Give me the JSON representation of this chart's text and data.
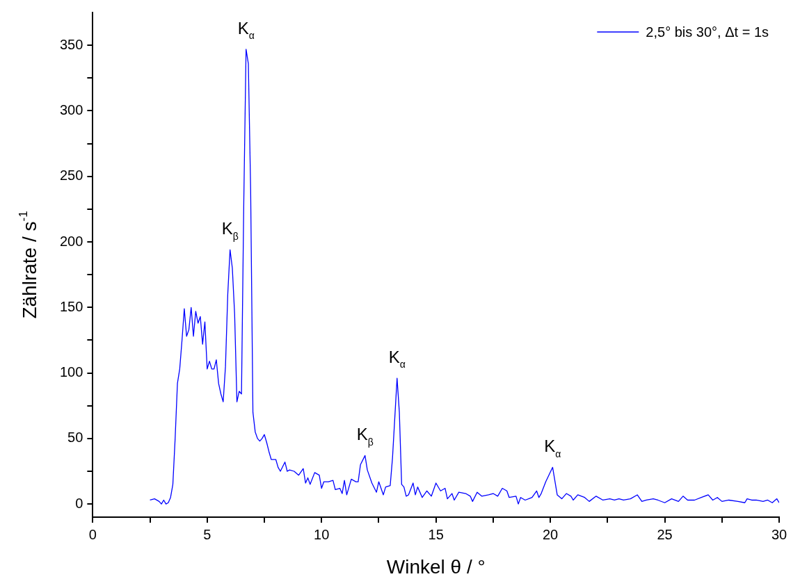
{
  "chart_data": {
    "type": "line",
    "xlabel": "Winkel θ / °",
    "ylabel": "Zählrate / s$^{-1}$",
    "xlim": [
      0,
      30
    ],
    "ylim": [
      -10,
      375
    ],
    "xticks": [
      0,
      {
        "value": 2.5,
        "label": null
      },
      5,
      {
        "value": 7.5,
        "label": null
      },
      10,
      {
        "value": 12.5,
        "label": null
      },
      15,
      {
        "value": 17.5,
        "label": null
      },
      20,
      {
        "value": 22.5,
        "label": null
      },
      25,
      {
        "value": 27.5,
        "label": null
      },
      30
    ],
    "yticks": [
      0,
      {
        "value": 25,
        "label": null
      },
      50,
      {
        "value": 75,
        "label": null
      },
      100,
      {
        "value": 125,
        "label": null
      },
      150,
      {
        "value": 175,
        "label": null
      },
      200,
      {
        "value": 225,
        "label": null
      },
      250,
      {
        "value": 275,
        "label": null
      },
      300,
      {
        "value": 325,
        "label": null
      },
      350
    ],
    "legend": "top right",
    "grid": false,
    "marker": "none",
    "line_style": "solid",
    "annotations": [
      {
        "text": "K$_{β}$",
        "x": 6.0,
        "y": 194
      },
      {
        "text": "K$_{α}$",
        "x": 6.7,
        "y": 347
      },
      {
        "text": "K$_{β}$",
        "x": 11.9,
        "y": 37
      },
      {
        "text": "K$_{α}$",
        "x": 13.3,
        "y": 96
      },
      {
        "text": "K$_{α}$",
        "x": 20.1,
        "y": 28
      }
    ],
    "series": [
      {
        "name": "2,5° bis 30°, Δt = 1s",
        "color": "#0000ff",
        "x": [
          2.5,
          2.7,
          2.9,
          3.0,
          3.1,
          3.2,
          3.3,
          3.4,
          3.5,
          3.6,
          3.7,
          3.8,
          3.9,
          4.0,
          4.1,
          4.2,
          4.3,
          4.4,
          4.5,
          4.6,
          4.7,
          4.8,
          4.9,
          5.0,
          5.1,
          5.2,
          5.3,
          5.4,
          5.5,
          5.6,
          5.7,
          5.8,
          5.9,
          6.0,
          6.1,
          6.2,
          6.3,
          6.4,
          6.5,
          6.6,
          6.7,
          6.8,
          6.9,
          7.0,
          7.1,
          7.2,
          7.3,
          7.4,
          7.5,
          7.6,
          7.7,
          7.8,
          8.0,
          8.1,
          8.2,
          8.4,
          8.5,
          8.6,
          8.8,
          9.0,
          9.2,
          9.3,
          9.4,
          9.5,
          9.7,
          9.9,
          10.0,
          10.1,
          10.3,
          10.5,
          10.6,
          10.8,
          10.9,
          11.0,
          11.1,
          11.3,
          11.5,
          11.6,
          11.7,
          11.9,
          12.0,
          12.2,
          12.4,
          12.5,
          12.7,
          12.8,
          13.0,
          13.1,
          13.3,
          13.4,
          13.5,
          13.6,
          13.7,
          13.8,
          14.0,
          14.1,
          14.2,
          14.4,
          14.6,
          14.8,
          15.0,
          15.2,
          15.4,
          15.5,
          15.7,
          15.8,
          16.0,
          16.3,
          16.5,
          16.6,
          16.8,
          17.0,
          17.3,
          17.5,
          17.7,
          17.9,
          18.1,
          18.2,
          18.5,
          18.6,
          18.7,
          18.9,
          19.2,
          19.4,
          19.5,
          19.6,
          19.8,
          20.1,
          20.3,
          20.5,
          20.7,
          20.9,
          21.0,
          21.2,
          21.5,
          21.7,
          22.0,
          22.3,
          22.6,
          22.8,
          23.0,
          23.2,
          23.5,
          23.8,
          24.0,
          24.2,
          24.5,
          24.7,
          25.0,
          25.3,
          25.6,
          25.8,
          26.0,
          26.3,
          26.6,
          26.9,
          27.1,
          27.3,
          27.5,
          27.8,
          28.2,
          28.5,
          28.6,
          28.8,
          29.0,
          29.3,
          29.5,
          29.7,
          29.9,
          30.0
        ],
        "values": [
          3,
          4,
          2,
          0,
          3,
          0,
          1,
          5,
          15,
          50,
          92,
          103,
          125,
          149,
          128,
          133,
          150,
          128,
          147,
          138,
          143,
          122,
          139,
          103,
          109,
          103,
          103,
          110,
          92,
          84,
          78,
          105,
          160,
          194,
          180,
          145,
          78,
          86,
          84,
          230,
          347,
          336,
          240,
          70,
          55,
          50,
          48,
          50,
          53,
          47,
          40,
          34,
          34,
          28,
          25,
          32,
          25,
          26,
          25,
          22,
          27,
          16,
          20,
          15,
          24,
          22,
          12,
          17,
          17,
          18,
          11,
          12,
          8,
          18,
          7,
          19,
          17,
          17,
          30,
          37,
          26,
          16,
          9,
          17,
          7,
          13,
          14,
          35,
          96,
          70,
          15,
          13,
          6,
          7,
          16,
          7,
          13,
          5,
          10,
          6,
          16,
          10,
          12,
          4,
          8,
          3,
          9,
          8,
          6,
          2,
          9,
          6,
          7,
          8,
          6,
          12,
          10,
          5,
          6,
          0,
          5,
          3,
          5,
          10,
          5,
          8,
          17,
          28,
          7,
          4,
          8,
          6,
          3,
          7,
          5,
          2,
          6,
          3,
          4,
          3,
          4,
          3,
          4,
          7,
          2,
          3,
          4,
          3,
          1,
          4,
          2,
          6,
          3,
          3,
          5,
          7,
          3,
          5,
          2,
          3,
          2,
          1,
          4,
          3,
          3,
          2,
          3,
          1,
          4,
          1
        ]
      }
    ]
  }
}
